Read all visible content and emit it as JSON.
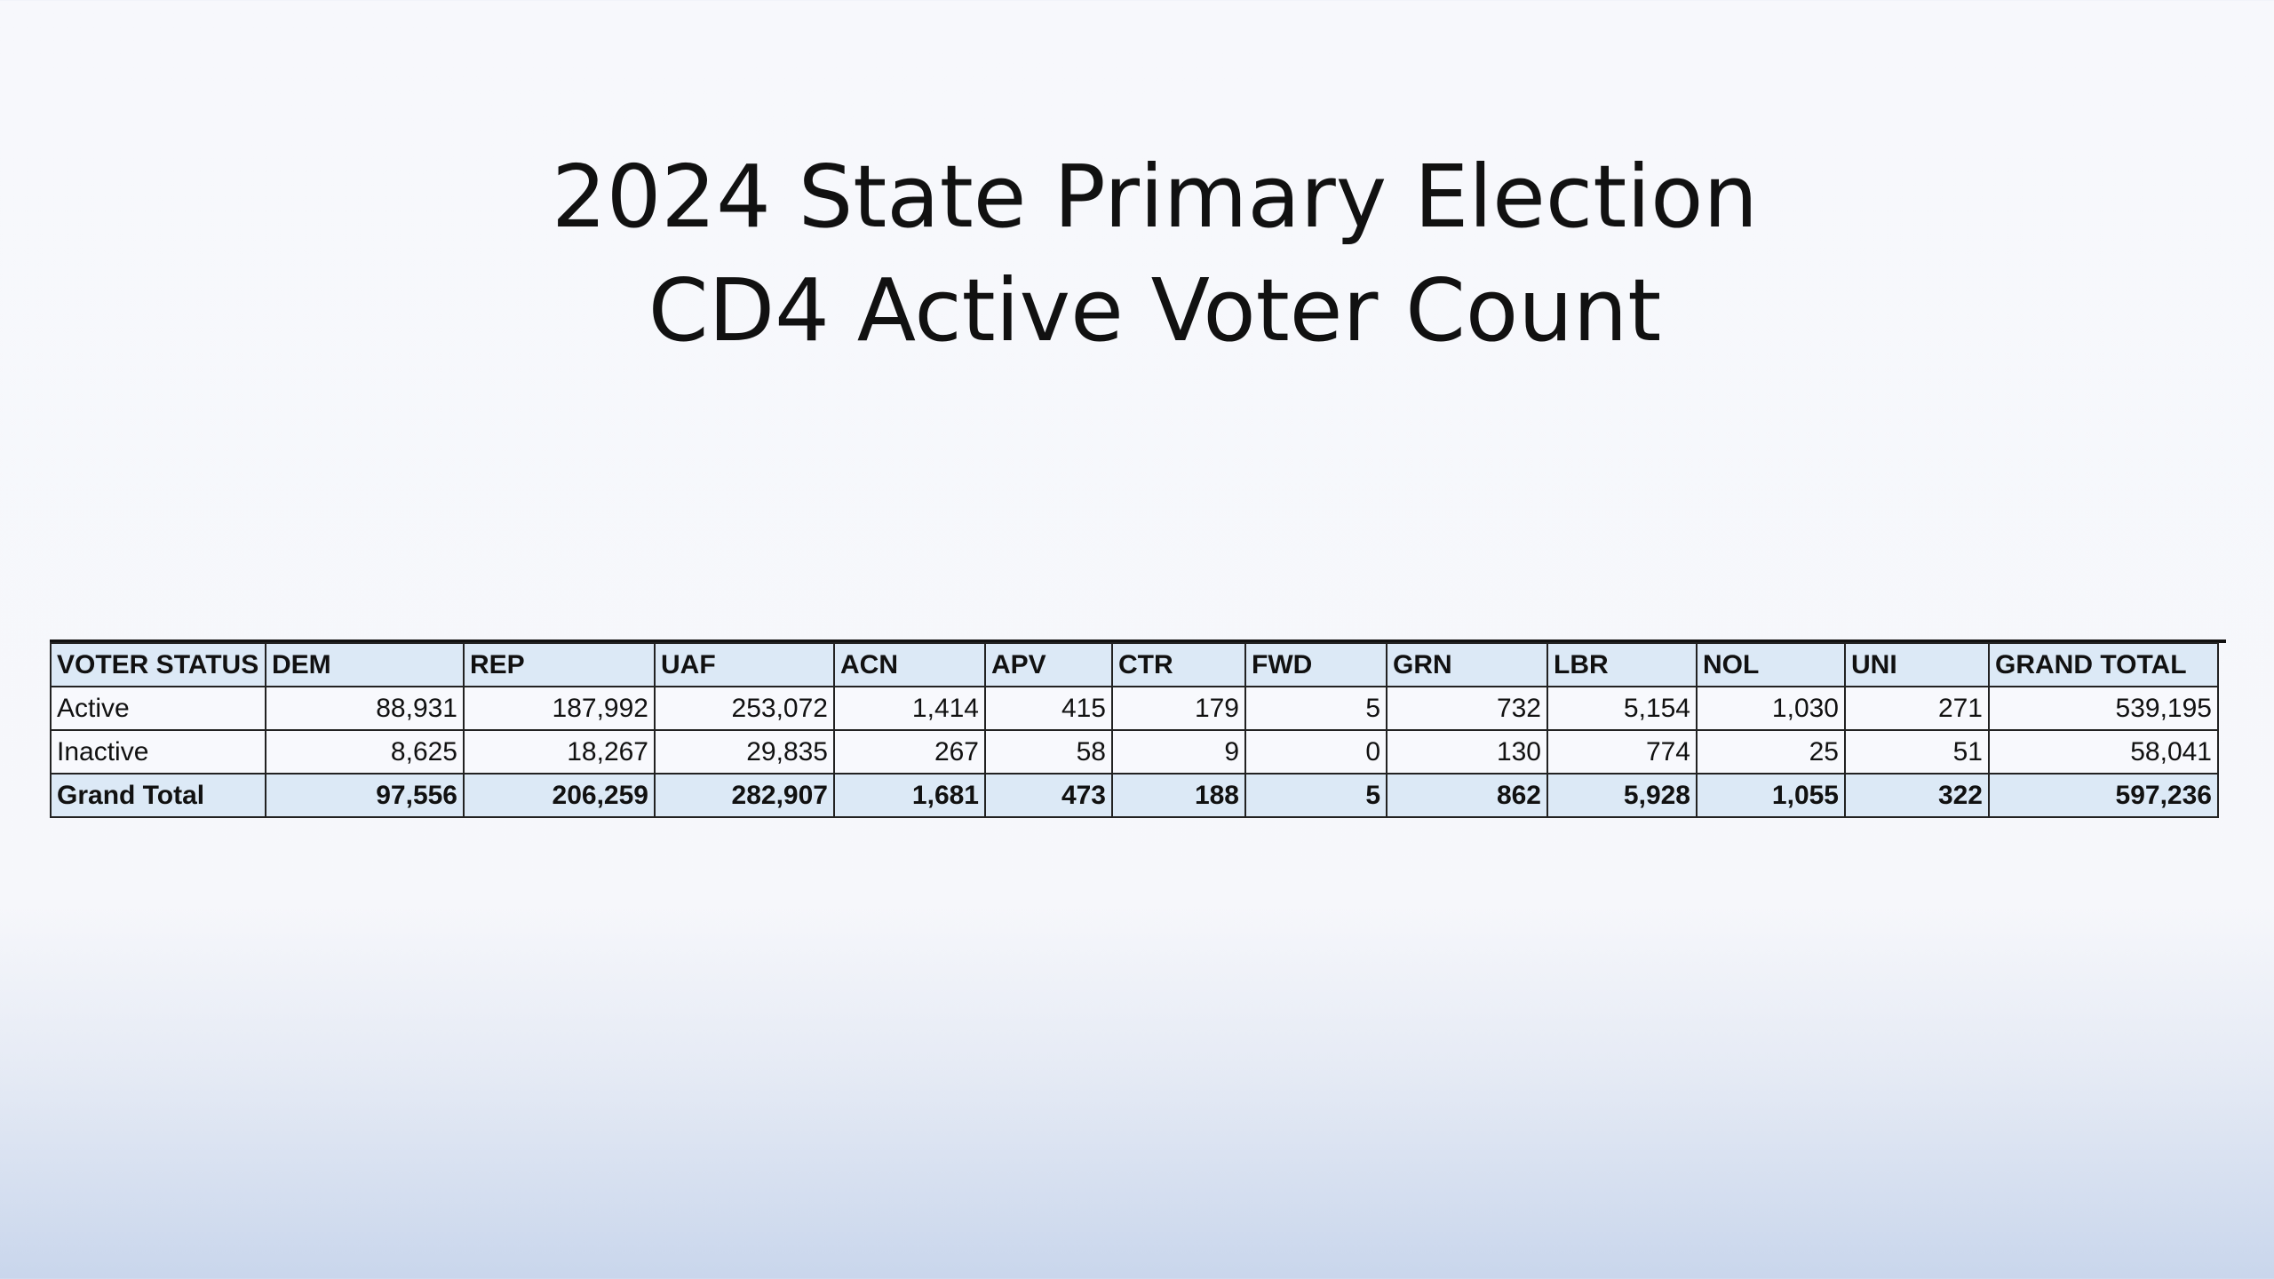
{
  "title": {
    "line1": "2024 State Primary Election",
    "line2": "CD4 Active Voter Count"
  },
  "table": {
    "headers": [
      "VOTER STATUS",
      "DEM",
      "REP",
      "UAF",
      "ACN",
      "APV",
      "CTR",
      "FWD",
      "GRN",
      "LBR",
      "NOL",
      "UNI",
      "GRAND TOTAL"
    ],
    "rows": [
      [
        "Active",
        "88,931",
        "187,992",
        "253,072",
        "1,414",
        "415",
        "179",
        "5",
        "732",
        "5,154",
        "1,030",
        "271",
        "539,195"
      ],
      [
        "Inactive",
        "8,625",
        "18,267",
        "29,835",
        "267",
        "58",
        "9",
        "0",
        "130",
        "774",
        "25",
        "51",
        "58,041"
      ]
    ],
    "total": [
      "Grand Total",
      "97,556",
      "206,259",
      "282,907",
      "1,681",
      "473",
      "188",
      "5",
      "862",
      "5,928",
      "1,055",
      "322",
      "597,236"
    ]
  },
  "colors": {
    "header_fill": "#dce9f6",
    "cell_fill": "#f8f9fd",
    "border": "#222222",
    "background_top": "#f7f8fc",
    "background_bottom": "#c9d6ec"
  }
}
